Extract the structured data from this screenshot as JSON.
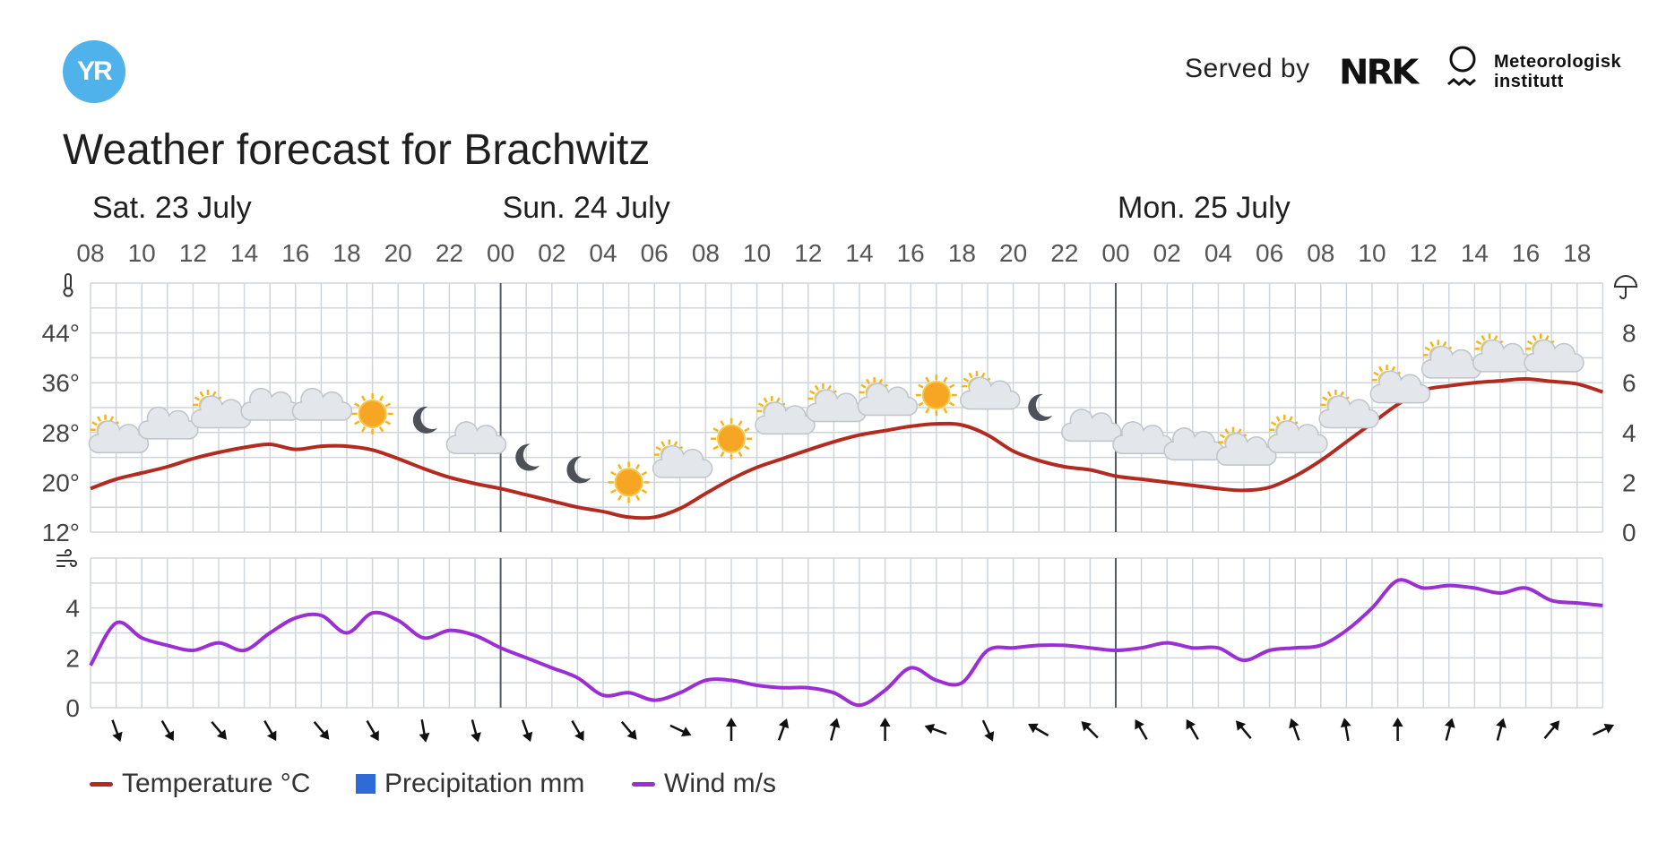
{
  "header": {
    "logo_text": "YR",
    "served_by": "Served by",
    "nrk_logo": "NRK",
    "met_logo_line1": "Meteorologisk",
    "met_logo_line2": "institutt"
  },
  "title": "Weather forecast for Brachwitz",
  "colors": {
    "temperature": "#b22a20",
    "wind": "#9b2fd3",
    "precipitation": "#2f6bd6",
    "grid": "#cfd5dc",
    "day_divider": "#555b61"
  },
  "legend": [
    {
      "label": "Temperature °C",
      "kind": "line",
      "color": "#b22a20"
    },
    {
      "label": "Precipitation mm",
      "kind": "box",
      "color": "#2f6bd6"
    },
    {
      "label": "Wind m/s",
      "kind": "line",
      "color": "#9b2fd3"
    }
  ],
  "chart_data": {
    "type": "line",
    "days": [
      {
        "label": "Sat. 23 July",
        "start_hour_index": 0
      },
      {
        "label": "Sun. 24 July",
        "start_hour_index": 16
      },
      {
        "label": "Mon. 25 July",
        "start_hour_index": 40
      }
    ],
    "x_start": "Sat. 23 July 08:00",
    "x_end": "Mon. 25 July 19:00",
    "hour_tick_labels": [
      "08",
      "10",
      "12",
      "14",
      "16",
      "18",
      "20",
      "22",
      "00",
      "02",
      "04",
      "06",
      "08",
      "10",
      "12",
      "14",
      "16",
      "18",
      "20",
      "22",
      "00",
      "02",
      "04",
      "06",
      "08",
      "10",
      "12",
      "14",
      "16",
      "18"
    ],
    "temperature_axis": {
      "ticks": [
        "12°",
        "20°",
        "28°",
        "36°",
        "44°"
      ],
      "ylim": [
        12,
        52
      ],
      "tick_values": [
        12,
        20,
        28,
        36,
        44
      ]
    },
    "precipitation_axis": {
      "ticks": [
        "0",
        "2",
        "4",
        "6",
        "8"
      ],
      "ylim": [
        0,
        10
      ],
      "tick_values": [
        0,
        2,
        4,
        6,
        8
      ]
    },
    "wind_axis": {
      "ticks": [
        "0",
        "2",
        "4"
      ],
      "ylim": [
        0,
        6
      ],
      "tick_values": [
        0,
        2,
        4
      ]
    },
    "temperature_series": {
      "name": "Temperature °C",
      "x_hours": [
        0,
        1,
        2,
        3,
        4,
        5,
        6,
        7,
        8,
        9,
        10,
        11,
        12,
        13,
        14,
        15,
        16,
        17,
        18,
        19,
        20,
        21,
        22,
        23,
        24,
        25,
        26,
        27,
        28,
        29,
        30,
        31,
        32,
        33,
        34,
        35,
        36,
        37,
        38,
        39,
        40,
        41,
        42,
        43,
        44,
        45,
        46,
        47,
        48,
        49,
        50,
        51,
        52,
        53,
        54,
        55,
        56,
        57,
        58,
        59
      ],
      "values": [
        19,
        20.5,
        21.5,
        22.5,
        23.8,
        24.8,
        25.6,
        26.1,
        25.3,
        25.8,
        25.8,
        25.2,
        23.8,
        22.2,
        20.8,
        19.8,
        19,
        18,
        17,
        16,
        15.3,
        14.4,
        14.4,
        15.8,
        18.2,
        20.5,
        22.4,
        23.8,
        25.2,
        26.5,
        27.6,
        28.3,
        29,
        29.4,
        29.2,
        27.6,
        25,
        23.5,
        22.5,
        22,
        21,
        20.5,
        20,
        19.5,
        19,
        18.7,
        19.2,
        21,
        23.5,
        26.5,
        29.5,
        32.5,
        34.8,
        35.5,
        36,
        36.3,
        36.6,
        36.2,
        35.8,
        34.5
      ]
    },
    "wind_series": {
      "name": "Wind m/s",
      "x_hours": [
        0,
        1,
        2,
        3,
        4,
        5,
        6,
        7,
        8,
        9,
        10,
        11,
        12,
        13,
        14,
        15,
        16,
        17,
        18,
        19,
        20,
        21,
        22,
        23,
        24,
        25,
        26,
        27,
        28,
        29,
        30,
        31,
        32,
        33,
        34,
        35,
        36,
        37,
        38,
        39,
        40,
        41,
        42,
        43,
        44,
        45,
        46,
        47,
        48,
        49,
        50,
        51,
        52,
        53,
        54,
        55,
        56,
        57,
        58,
        59
      ],
      "values": [
        1.7,
        3.4,
        2.8,
        2.5,
        2.3,
        2.6,
        2.3,
        3.0,
        3.6,
        3.7,
        3.0,
        3.8,
        3.5,
        2.8,
        3.1,
        2.9,
        2.4,
        2.0,
        1.6,
        1.2,
        0.5,
        0.6,
        0.3,
        0.6,
        1.1,
        1.1,
        0.9,
        0.8,
        0.8,
        0.6,
        0.1,
        0.7,
        1.6,
        1.1,
        1.0,
        2.3,
        2.4,
        2.5,
        2.5,
        2.4,
        2.3,
        2.4,
        2.6,
        2.4,
        2.4,
        1.9,
        2.3,
        2.4,
        2.5,
        3.1,
        4.0,
        5.1,
        4.8,
        4.9,
        4.8,
        4.6,
        4.8,
        4.3,
        4.2,
        4.1
      ]
    },
    "precipitation_series": {
      "name": "Precipitation mm",
      "values": []
    },
    "weather_symbols": [
      {
        "hour": 1,
        "icon": "partly-cloudy-day-icon",
        "tempbase": 27
      },
      {
        "hour": 3,
        "icon": "cloudy-icon",
        "tempbase": 29
      },
      {
        "hour": 5,
        "icon": "partly-cloudy-day-icon",
        "tempbase": 31
      },
      {
        "hour": 7,
        "icon": "cloudy-icon",
        "tempbase": 32
      },
      {
        "hour": 9,
        "icon": "cloudy-icon",
        "tempbase": 32
      },
      {
        "hour": 11,
        "icon": "clear-sun-icon",
        "tempbase": 31
      },
      {
        "hour": 13,
        "icon": "clear-night-icon",
        "tempbase": 30
      },
      {
        "hour": 15,
        "icon": "partly-cloudy-night-icon",
        "tempbase": 27
      },
      {
        "hour": 17,
        "icon": "clear-night-icon",
        "tempbase": 24
      },
      {
        "hour": 19,
        "icon": "clear-night-icon",
        "tempbase": 22
      },
      {
        "hour": 21,
        "icon": "clear-sun-icon",
        "tempbase": 20
      },
      {
        "hour": 23,
        "icon": "partly-cloudy-day-icon",
        "tempbase": 23
      },
      {
        "hour": 25,
        "icon": "clear-sun-icon",
        "tempbase": 27
      },
      {
        "hour": 27,
        "icon": "partly-cloudy-day-icon",
        "tempbase": 30
      },
      {
        "hour": 29,
        "icon": "partly-cloudy-day-icon",
        "tempbase": 32
      },
      {
        "hour": 31,
        "icon": "partly-cloudy-day-icon",
        "tempbase": 33
      },
      {
        "hour": 33,
        "icon": "clear-sun-icon",
        "tempbase": 34
      },
      {
        "hour": 35,
        "icon": "partly-cloudy-day-icon",
        "tempbase": 34
      },
      {
        "hour": 37,
        "icon": "clear-night-icon",
        "tempbase": 32
      },
      {
        "hour": 39,
        "icon": "partly-cloudy-night-icon",
        "tempbase": 29
      },
      {
        "hour": 41,
        "icon": "partly-cloudy-night-icon",
        "tempbase": 27
      },
      {
        "hour": 43,
        "icon": "partly-cloudy-night-icon",
        "tempbase": 26
      },
      {
        "hour": 45,
        "icon": "partly-cloudy-day-icon",
        "tempbase": 25
      },
      {
        "hour": 47,
        "icon": "partly-cloudy-day-icon",
        "tempbase": 27
      },
      {
        "hour": 49,
        "icon": "partly-cloudy-day-icon",
        "tempbase": 31
      },
      {
        "hour": 51,
        "icon": "partly-cloudy-day-icon",
        "tempbase": 35
      },
      {
        "hour": 53,
        "icon": "partly-cloudy-day-icon",
        "tempbase": 39
      },
      {
        "hour": 55,
        "icon": "partly-cloudy-day-icon",
        "tempbase": 40
      },
      {
        "hour": 57,
        "icon": "partly-cloudy-day-icon",
        "tempbase": 40
      }
    ],
    "wind_directions_deg": [
      {
        "hour": 1,
        "deg": 160
      },
      {
        "hour": 3,
        "deg": 150
      },
      {
        "hour": 5,
        "deg": 140
      },
      {
        "hour": 7,
        "deg": 150
      },
      {
        "hour": 9,
        "deg": 140
      },
      {
        "hour": 11,
        "deg": 150
      },
      {
        "hour": 13,
        "deg": 170
      },
      {
        "hour": 15,
        "deg": 165
      },
      {
        "hour": 17,
        "deg": 160
      },
      {
        "hour": 19,
        "deg": 150
      },
      {
        "hour": 21,
        "deg": 140
      },
      {
        "hour": 23,
        "deg": 115
      },
      {
        "hour": 25,
        "deg": 0
      },
      {
        "hour": 27,
        "deg": 20
      },
      {
        "hour": 29,
        "deg": 15
      },
      {
        "hour": 31,
        "deg": 0
      },
      {
        "hour": 33,
        "deg": 290
      },
      {
        "hour": 35,
        "deg": 155
      },
      {
        "hour": 37,
        "deg": 300
      },
      {
        "hour": 39,
        "deg": 315
      },
      {
        "hour": 41,
        "deg": 330
      },
      {
        "hour": 43,
        "deg": 330
      },
      {
        "hour": 45,
        "deg": 320
      },
      {
        "hour": 47,
        "deg": 340
      },
      {
        "hour": 49,
        "deg": 350
      },
      {
        "hour": 51,
        "deg": 0
      },
      {
        "hour": 53,
        "deg": 15
      },
      {
        "hour": 55,
        "deg": 15
      },
      {
        "hour": 57,
        "deg": 40
      },
      {
        "hour": 59,
        "deg": 65
      }
    ]
  }
}
